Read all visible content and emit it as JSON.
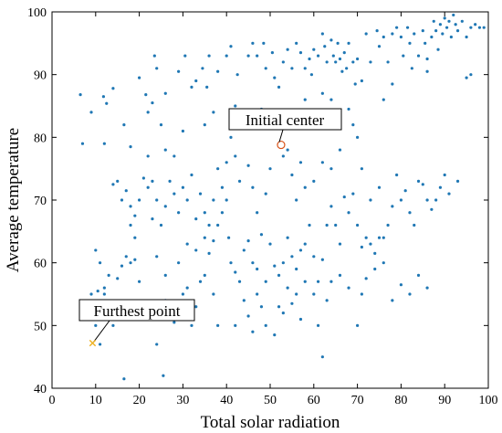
{
  "chart_data": {
    "type": "scatter",
    "title": "",
    "xlabel": "Total solar radiation",
    "ylabel": "Average temperature",
    "xlim": [
      0,
      100
    ],
    "ylim": [
      40,
      100
    ],
    "xticks": [
      "0",
      "10",
      "20",
      "30",
      "40",
      "50",
      "60",
      "70",
      "80",
      "90",
      "100"
    ],
    "yticks": [
      "40",
      "50",
      "60",
      "70",
      "80",
      "90",
      "100"
    ],
    "grid": false,
    "colors": {
      "points": "#1f77b4",
      "center": "#d95319",
      "furthest": "#edb120"
    },
    "series": [
      {
        "points": [
          [
            6.5,
            86.8
          ],
          [
            11.8,
            86.5
          ],
          [
            12.5,
            85.4
          ],
          [
            14,
            87.8
          ],
          [
            16.5,
            82
          ],
          [
            20,
            89.5
          ],
          [
            21.5,
            86.8
          ],
          [
            22,
            84
          ],
          [
            23,
            85.5
          ],
          [
            23.5,
            93
          ],
          [
            24,
            91
          ],
          [
            25,
            82
          ],
          [
            26,
            87
          ],
          [
            29,
            90.5
          ],
          [
            30.5,
            93
          ],
          [
            32,
            88
          ],
          [
            33,
            89
          ],
          [
            34.5,
            91
          ],
          [
            35.5,
            88
          ],
          [
            36,
            93
          ],
          [
            38,
            90.5
          ],
          [
            40,
            93
          ],
          [
            41,
            94.5
          ],
          [
            42.5,
            90
          ],
          [
            45,
            93
          ],
          [
            46,
            95
          ],
          [
            47,
            93
          ],
          [
            48.5,
            95
          ],
          [
            49,
            91
          ],
          [
            50.5,
            93.5
          ],
          [
            51,
            89.5
          ],
          [
            52,
            88
          ],
          [
            53,
            92
          ],
          [
            54,
            94
          ],
          [
            55,
            91
          ],
          [
            56,
            95
          ],
          [
            57,
            93.5
          ],
          [
            58,
            91
          ],
          [
            59,
            92.5
          ],
          [
            59.5,
            90
          ],
          [
            60,
            94
          ],
          [
            61,
            93
          ],
          [
            62,
            96.5
          ],
          [
            62.5,
            94.5
          ],
          [
            63,
            92
          ],
          [
            64,
            95.5
          ],
          [
            64.5,
            93
          ],
          [
            65,
            92
          ],
          [
            65.5,
            95
          ],
          [
            66,
            92.5
          ],
          [
            66.5,
            90.5
          ],
          [
            67,
            93.5
          ],
          [
            67.5,
            91
          ],
          [
            68,
            95
          ],
          [
            69,
            92
          ],
          [
            69.5,
            88.5
          ],
          [
            70,
            92.5
          ],
          [
            72,
            96.5
          ],
          [
            73,
            92
          ],
          [
            74.5,
            97
          ],
          [
            75,
            94.5
          ],
          [
            76,
            96
          ],
          [
            77,
            92
          ],
          [
            78,
            96.5
          ],
          [
            79,
            97.5
          ],
          [
            80,
            96
          ],
          [
            80.5,
            93
          ],
          [
            81.5,
            97.5
          ],
          [
            82,
            95
          ],
          [
            82.5,
            91
          ],
          [
            83,
            96.5
          ],
          [
            84,
            93
          ],
          [
            85,
            97
          ],
          [
            85.5,
            95
          ],
          [
            86,
            92.5
          ],
          [
            87,
            96
          ],
          [
            87.5,
            98.5
          ],
          [
            88,
            97
          ],
          [
            88.5,
            94
          ],
          [
            89,
            98
          ],
          [
            89.5,
            96.5
          ],
          [
            90,
            99
          ],
          [
            90.5,
            97.5
          ],
          [
            91,
            98.5
          ],
          [
            91.5,
            96
          ],
          [
            92,
            99.5
          ],
          [
            92.5,
            98
          ],
          [
            93,
            97
          ],
          [
            94,
            98.5
          ],
          [
            95,
            96
          ],
          [
            96,
            97.5
          ],
          [
            97,
            98
          ],
          [
            98,
            97.5
          ],
          [
            99,
            97.5
          ],
          [
            96,
            90
          ],
          [
            95,
            89.5
          ],
          [
            86,
            90.5
          ],
          [
            78,
            88.5
          ],
          [
            76,
            86
          ],
          [
            71,
            89
          ],
          [
            68,
            84.5
          ],
          [
            64,
            86
          ],
          [
            62,
            87
          ],
          [
            58,
            86
          ],
          [
            56,
            82
          ],
          [
            52,
            81.5
          ],
          [
            48,
            84.5
          ],
          [
            44,
            82
          ],
          [
            42,
            85
          ],
          [
            41,
            80
          ],
          [
            37,
            84
          ],
          [
            35,
            82
          ],
          [
            30,
            81
          ],
          [
            28,
            77
          ],
          [
            26,
            78
          ],
          [
            22,
            77
          ],
          [
            18,
            78.5
          ],
          [
            12,
            79
          ],
          [
            9,
            84
          ],
          [
            7,
            79
          ],
          [
            14,
            72.5
          ],
          [
            15,
            73
          ],
          [
            16,
            70
          ],
          [
            17,
            71.5
          ],
          [
            18,
            69
          ],
          [
            19,
            67.5
          ],
          [
            20,
            70
          ],
          [
            21,
            73.5
          ],
          [
            22,
            72
          ],
          [
            23,
            67
          ],
          [
            19,
            64
          ],
          [
            18,
            66
          ],
          [
            17,
            61
          ],
          [
            16,
            59.5
          ],
          [
            18,
            60
          ],
          [
            19,
            60.5
          ],
          [
            20,
            57
          ],
          [
            15,
            57.5
          ],
          [
            13,
            58
          ],
          [
            12,
            56
          ],
          [
            10,
            62
          ],
          [
            11,
            60
          ],
          [
            12,
            55
          ],
          [
            10.5,
            55.5
          ],
          [
            9,
            55
          ],
          [
            10,
            50
          ],
          [
            13,
            51
          ],
          [
            14,
            50
          ],
          [
            11,
            47
          ],
          [
            16.5,
            41.5
          ],
          [
            25.5,
            42
          ],
          [
            24,
            47
          ],
          [
            26,
            54
          ],
          [
            27,
            52
          ],
          [
            28,
            50.5
          ],
          [
            29,
            51.5
          ],
          [
            30,
            55
          ],
          [
            31,
            56
          ],
          [
            32,
            50
          ],
          [
            33,
            53
          ],
          [
            34,
            57
          ],
          [
            35,
            58
          ],
          [
            36,
            61.5
          ],
          [
            37,
            63.5
          ],
          [
            38,
            66
          ],
          [
            39,
            68
          ],
          [
            40,
            70
          ],
          [
            40.5,
            64
          ],
          [
            41,
            60
          ],
          [
            42,
            58.5
          ],
          [
            43,
            57
          ],
          [
            44,
            62
          ],
          [
            45,
            63.5
          ],
          [
            46,
            60
          ],
          [
            47,
            59
          ],
          [
            48,
            64.5
          ],
          [
            49,
            57
          ],
          [
            50,
            63
          ],
          [
            51,
            59.5
          ],
          [
            52,
            58
          ],
          [
            53,
            60
          ],
          [
            54,
            64
          ],
          [
            55,
            61
          ],
          [
            56,
            59
          ],
          [
            57,
            62
          ],
          [
            58,
            63
          ],
          [
            59,
            66
          ],
          [
            60,
            61
          ],
          [
            61,
            57
          ],
          [
            62,
            60.5
          ],
          [
            63,
            66
          ],
          [
            64,
            69
          ],
          [
            65,
            66
          ],
          [
            66,
            63
          ],
          [
            67,
            70.5
          ],
          [
            68,
            68
          ],
          [
            69,
            71
          ],
          [
            70,
            66
          ],
          [
            71,
            62.5
          ],
          [
            72,
            64
          ],
          [
            73,
            63
          ],
          [
            74,
            61.5
          ],
          [
            75,
            72
          ],
          [
            76,
            64
          ],
          [
            77,
            66
          ],
          [
            78,
            69
          ],
          [
            79,
            74
          ],
          [
            80,
            70
          ],
          [
            81,
            71.5
          ],
          [
            82,
            68
          ],
          [
            83,
            66
          ],
          [
            84,
            73
          ],
          [
            85,
            72.5
          ],
          [
            86,
            70
          ],
          [
            87,
            68.5
          ],
          [
            88,
            70
          ],
          [
            89,
            72
          ],
          [
            90,
            74
          ],
          [
            91,
            71
          ],
          [
            93,
            73
          ],
          [
            42,
            50
          ],
          [
            44,
            54
          ],
          [
            45,
            51.5
          ],
          [
            46,
            49
          ],
          [
            47,
            55
          ],
          [
            48,
            53
          ],
          [
            49,
            50
          ],
          [
            51,
            48.5
          ],
          [
            52,
            53
          ],
          [
            53,
            52
          ],
          [
            54,
            56
          ],
          [
            55,
            53.5
          ],
          [
            56,
            55
          ],
          [
            57,
            51
          ],
          [
            58,
            57
          ],
          [
            60,
            55
          ],
          [
            61,
            50
          ],
          [
            62,
            45
          ],
          [
            63,
            54
          ],
          [
            64,
            57
          ],
          [
            66,
            58
          ],
          [
            68,
            56
          ],
          [
            70,
            50
          ],
          [
            71,
            55
          ],
          [
            72,
            57.5
          ],
          [
            74,
            59
          ],
          [
            76,
            60
          ],
          [
            78,
            54
          ],
          [
            80,
            56.5
          ],
          [
            82,
            55
          ],
          [
            84,
            58
          ],
          [
            86,
            56
          ],
          [
            75,
            64
          ],
          [
            73,
            70
          ],
          [
            71,
            75
          ],
          [
            70,
            80
          ],
          [
            69,
            82
          ],
          [
            66,
            78
          ],
          [
            64,
            75
          ],
          [
            62,
            76
          ],
          [
            60,
            73
          ],
          [
            58,
            72
          ],
          [
            57,
            76
          ],
          [
            56,
            70
          ],
          [
            55,
            74
          ],
          [
            54,
            78
          ],
          [
            53,
            77
          ],
          [
            50,
            75
          ],
          [
            49,
            71
          ],
          [
            47,
            68
          ],
          [
            46,
            72
          ],
          [
            45,
            75.5
          ],
          [
            43,
            73
          ],
          [
            42,
            77
          ],
          [
            40,
            76
          ],
          [
            39,
            72
          ],
          [
            38,
            75
          ],
          [
            37,
            70
          ],
          [
            36,
            66
          ],
          [
            35,
            68
          ],
          [
            34,
            71
          ],
          [
            33,
            67
          ],
          [
            32,
            74
          ],
          [
            31,
            70
          ],
          [
            30,
            72
          ],
          [
            29,
            68
          ],
          [
            28,
            71
          ],
          [
            27,
            73
          ],
          [
            26,
            69
          ],
          [
            25,
            66
          ],
          [
            24,
            70
          ],
          [
            23,
            73
          ],
          [
            24,
            61
          ],
          [
            26,
            58
          ],
          [
            29,
            60
          ],
          [
            31,
            63
          ],
          [
            33,
            62
          ],
          [
            35,
            64
          ],
          [
            37,
            55
          ],
          [
            38,
            50
          ]
        ]
      }
    ],
    "annotations": [
      {
        "label": "Initial center",
        "x": 52.5,
        "y": 78.8,
        "marker": "o"
      },
      {
        "label": "Furthest point",
        "x": 9.3,
        "y": 47.2,
        "marker": "x"
      }
    ]
  }
}
